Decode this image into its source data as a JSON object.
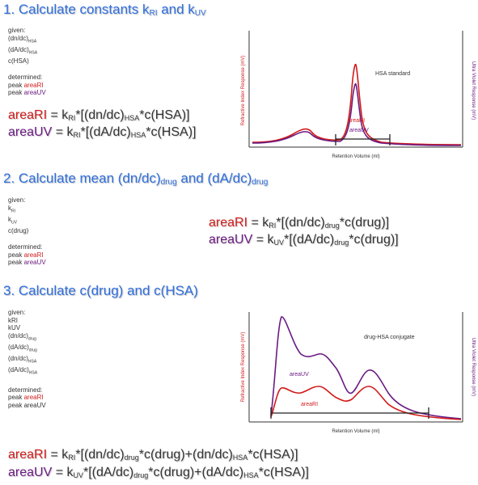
{
  "step1": {
    "title_prefix": "1. Calculate constants k",
    "title_sub1": "RI",
    "title_mid": " and k",
    "title_sub2": "UV",
    "given_label": "given:",
    "given_items": [
      {
        "main": "(dn/dc)",
        "sub": "HSA"
      },
      {
        "main": "(dA/dc)",
        "sub": "HSA"
      },
      {
        "main": "c(HSA)",
        "sub": ""
      }
    ],
    "determined_label": "determined:",
    "determined_items": [
      {
        "pre": "peak ",
        "hl": "areaRI",
        "color": "red"
      },
      {
        "pre": "peak ",
        "hl": "areaUV",
        "color": "purple"
      }
    ],
    "eq_ri": {
      "lhs": "areaRI",
      "a": " = k",
      "s1": "RI",
      "b": "*[(dn/dc)",
      "s2": "HSA",
      "c": "*c(HSA)]"
    },
    "eq_uv": {
      "lhs": "areaUV",
      "a": " = k",
      "s1": "RI",
      "b": "*[(dA/dc)",
      "s2": "HSA",
      "c": "*c(HSA)]"
    },
    "chart": {
      "y_left": "Refractive Index Response (mV)",
      "y_right": "Ultra Violet Response (mV)",
      "x_label": "Retention Volume (ml)",
      "annotation": "HSA standard",
      "area_ri": "areaRI",
      "area_uv": "areaUV"
    }
  },
  "step2": {
    "title_prefix": "2. Calculate mean (dn/dc)",
    "title_sub1": "drug",
    "title_mid": " and (dA/dc)",
    "title_sub2": "drug",
    "given_label": "given:",
    "given_items": [
      {
        "main": "k",
        "sub": "RI"
      },
      {
        "main": "k",
        "sub": "UV"
      },
      {
        "main": "c(drug)",
        "sub": ""
      }
    ],
    "determined_label": "determined:",
    "determined_items": [
      {
        "pre": "peak ",
        "hl": "areaRI",
        "color": "red"
      },
      {
        "pre": "peak ",
        "hl": "areaUV",
        "color": "purple"
      }
    ],
    "eq_ri": {
      "lhs": "areaRI",
      "a": " = k",
      "s1": "RI",
      "b": "*[(dn/dc)",
      "s2": "drug",
      "c": "*c(drug)]"
    },
    "eq_uv": {
      "lhs": "areaUV",
      "a": " = k",
      "s1": "UV",
      "b": "*[(dA/dc)",
      "s2": "drug",
      "c": "*c(drug)]"
    }
  },
  "step3": {
    "title": "3. Calculate c(drug) and c(HSA)",
    "given_label": "given:",
    "given_items": [
      {
        "main": "kRI",
        "sub": ""
      },
      {
        "main": "kUV",
        "sub": ""
      },
      {
        "main": "(dn/dc)",
        "sub": "drug"
      },
      {
        "main": "(dA/dc)",
        "sub": "drug"
      },
      {
        "main": "(dn/dc)",
        "sub": "HSA"
      },
      {
        "main": "(dA/dc)",
        "sub": "HSA"
      }
    ],
    "determined_label": "determined:",
    "determined_items": [
      {
        "pre": "peak ",
        "hl": "areaRI",
        "color": "red"
      },
      {
        "pre": "peak areaUV",
        "hl": "",
        "color": "none"
      }
    ],
    "eq_ri": {
      "lhs": "areaRI",
      "a": " = k",
      "s1": "RI",
      "b": "*[(dn/dc)",
      "s2": "drug",
      "c": "*c(drug)+(dn/dc)",
      "s3": "HSA",
      "d": "*c(HSA)]"
    },
    "eq_uv": {
      "lhs": "areaUV",
      "a": " = k",
      "s1": "UV",
      "b": "*[(dA/dc)",
      "s2": "drug",
      "c": "*c(drug)+(dA/dc)",
      "s3": "HSA",
      "d": "*c(HSA)]"
    },
    "chart": {
      "y_left": "Refractive Index Response (mV)",
      "y_right": "Ultra Violet Response (mV)",
      "x_label": "Retention Volume (ml)",
      "annotation": "drug-HSA conjugate",
      "area_ri": "areaRI",
      "area_uv": "areaUV"
    }
  },
  "colors": {
    "title": "#2f6fe0",
    "ri": "#d11a1a",
    "uv": "#6b1b82"
  }
}
